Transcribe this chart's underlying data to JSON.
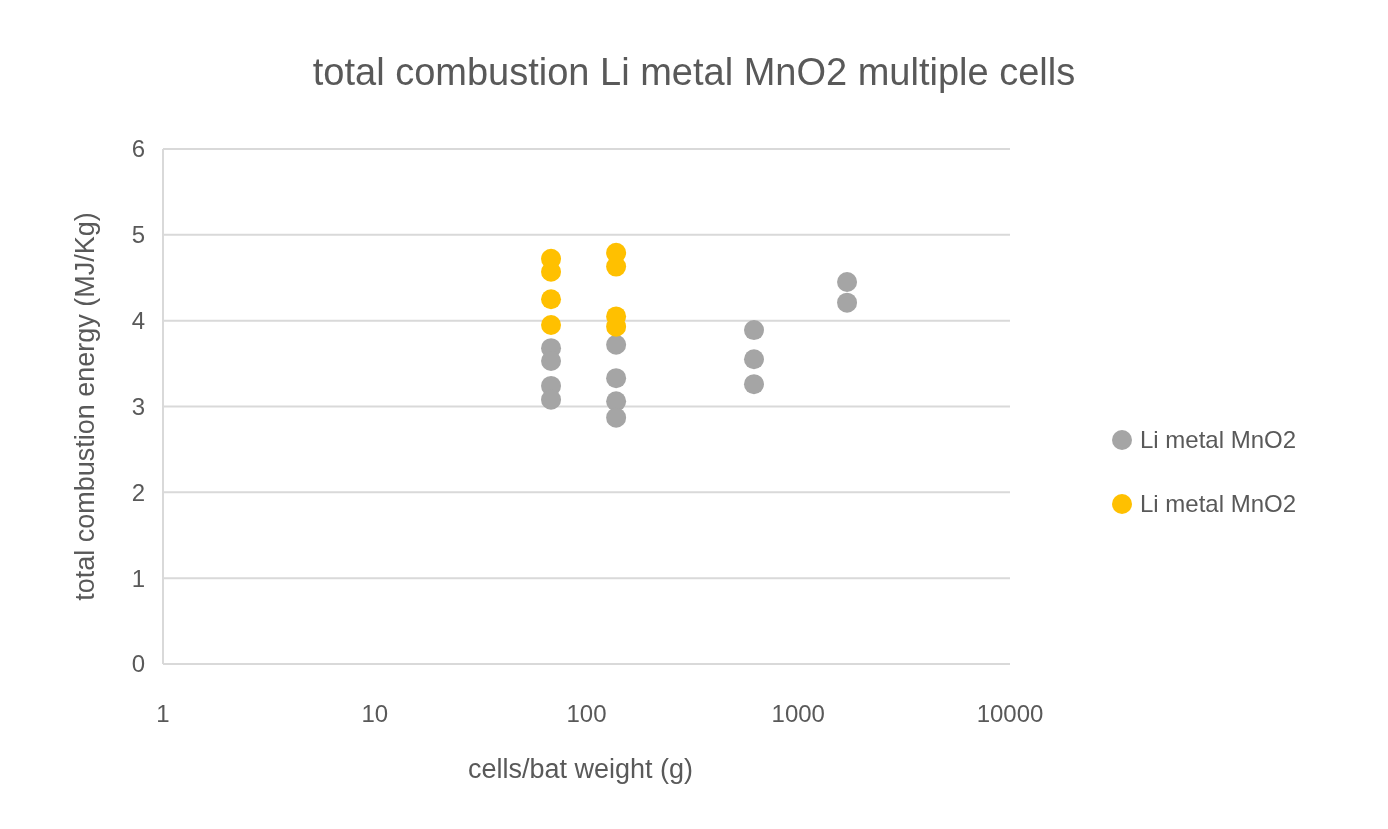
{
  "chart_data": {
    "type": "scatter",
    "title": "total combustion Li metal MnO2 multiple cells",
    "xlabel": "cells/bat weight (g)",
    "ylabel": "total combustion energy (MJ/Kg)",
    "log": "x",
    "xlim": [
      1,
      10000
    ],
    "xticks": [
      1,
      10,
      100,
      1000,
      10000
    ],
    "ylim": [
      0,
      6
    ],
    "yticks": [
      0,
      1,
      2,
      3,
      4,
      5,
      6
    ],
    "grid": "y",
    "legend": "right",
    "marker": "circle",
    "series": [
      {
        "name": "Li metal MnO2",
        "color": "#a5a5a5",
        "x": [
          68,
          68,
          68,
          68,
          138,
          138,
          138,
          138,
          618,
          618,
          618,
          1700,
          1700
        ],
        "values": [
          3.68,
          3.53,
          3.24,
          3.08,
          3.72,
          3.33,
          3.06,
          2.87,
          3.89,
          3.55,
          3.26,
          4.45,
          4.21
        ]
      },
      {
        "name": "Li metal MnO2",
        "color": "#ffc000",
        "x": [
          68,
          68,
          68,
          68,
          138,
          138,
          138,
          138
        ],
        "values": [
          4.72,
          4.57,
          4.25,
          3.95,
          4.79,
          4.63,
          4.05,
          3.93
        ]
      }
    ]
  }
}
